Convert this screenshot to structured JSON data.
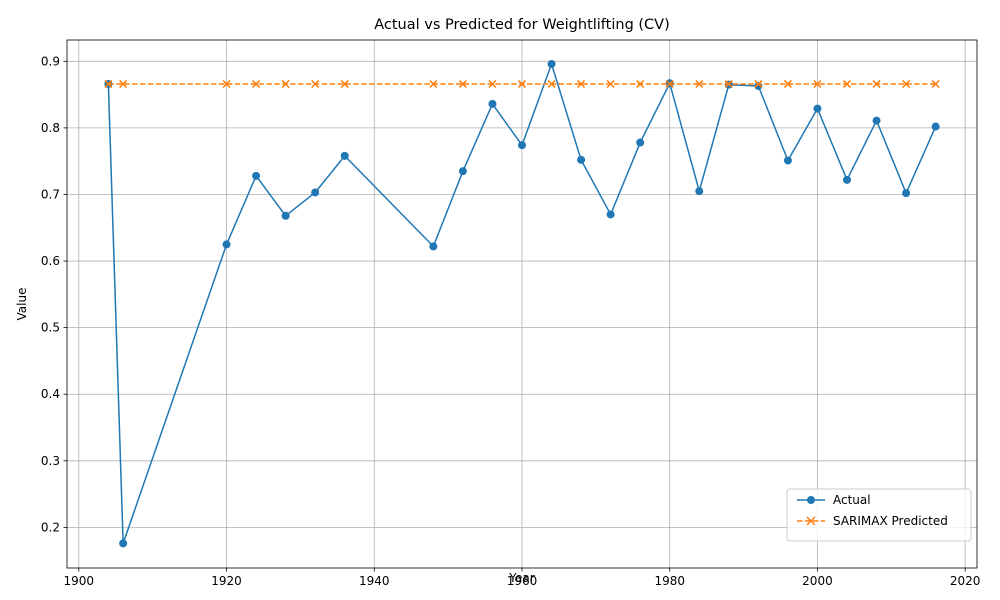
{
  "chart_data": {
    "type": "line",
    "title": "Actual vs Predicted for Weightlifting (CV)",
    "xlabel": "Year",
    "ylabel": "Value",
    "xlim": [
      1898.4,
      2021.6
    ],
    "ylim": [
      0.139,
      0.932
    ],
    "xticks": [
      1900,
      1920,
      1940,
      1960,
      1980,
      2000,
      2020
    ],
    "yticks": [
      0.2,
      0.3,
      0.4,
      0.5,
      0.6,
      0.7,
      0.8,
      0.9
    ],
    "grid": true,
    "legend_position": "lower right",
    "x": [
      1904,
      1906,
      1920,
      1924,
      1928,
      1932,
      1936,
      1948,
      1952,
      1956,
      1960,
      1964,
      1968,
      1972,
      1976,
      1980,
      1984,
      1988,
      1992,
      1996,
      2000,
      2004,
      2008,
      2012,
      2016
    ],
    "series": [
      {
        "name": "Actual",
        "color": "#1f77b4",
        "marker": "circle",
        "linestyle": "solid",
        "values": [
          0.866,
          0.176,
          0.625,
          0.728,
          0.668,
          0.703,
          0.758,
          0.622,
          0.735,
          0.836,
          0.774,
          0.896,
          0.752,
          0.67,
          0.778,
          0.867,
          0.705,
          0.865,
          0.863,
          0.751,
          0.829,
          0.722,
          0.811,
          0.702,
          0.802
        ]
      },
      {
        "name": "SARIMAX Predicted",
        "color": "#ff7f0e",
        "marker": "x",
        "linestyle": "dashed",
        "values": [
          0.866,
          0.866,
          0.866,
          0.866,
          0.866,
          0.866,
          0.866,
          0.866,
          0.866,
          0.866,
          0.866,
          0.866,
          0.866,
          0.866,
          0.866,
          0.866,
          0.866,
          0.866,
          0.866,
          0.866,
          0.866,
          0.866,
          0.866,
          0.866,
          0.866
        ]
      }
    ]
  }
}
